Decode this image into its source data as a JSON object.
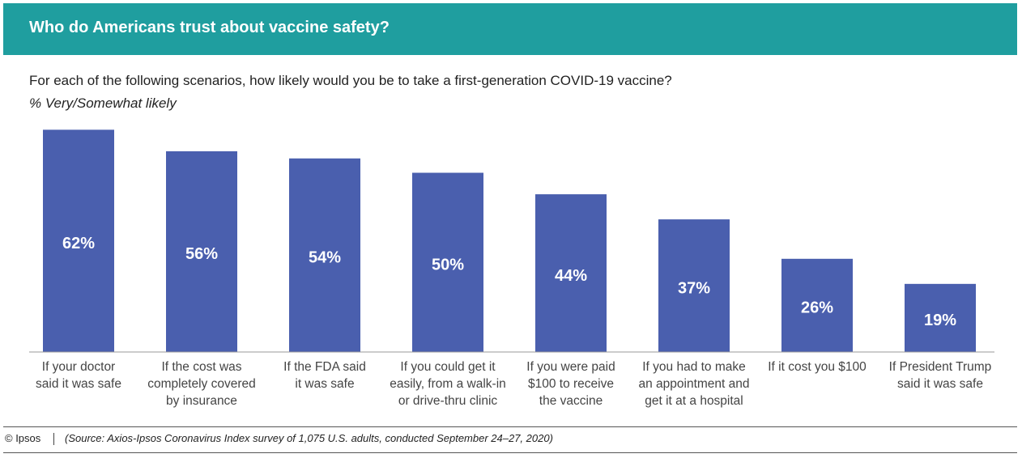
{
  "chart_data": {
    "type": "bar",
    "title": "Who do Americans trust about vaccine safety?",
    "subtitle": "For each of the following scenarios, how likely would you be to take a first-generation COVID-19 vaccine?",
    "unit_label": "% Very/Somewhat likely",
    "categories": [
      "If your doctor\nsaid it was safe",
      "If the cost was\ncompletely covered\nby insurance",
      "If the FDA said\nit was safe",
      "If you could get it\neasily, from a walk-in\nor drive-thru clinic",
      "If you were paid\n$100 to receive\nthe vaccine",
      "If you had to make\nan appointment and\nget it at a hospital",
      "If it cost you $100",
      "If President Trump\nsaid it was safe"
    ],
    "values": [
      62,
      56,
      54,
      50,
      44,
      37,
      26,
      19
    ],
    "value_labels": [
      "62%",
      "56%",
      "54%",
      "50%",
      "44%",
      "37%",
      "26%",
      "19%"
    ],
    "color": "#4a5fae",
    "brand": "© Ipsos",
    "source": "(Source: Axios-Ipsos Coronavirus Index survey of 1,075 U.S. adults, conducted September 24–27, 2020)"
  }
}
